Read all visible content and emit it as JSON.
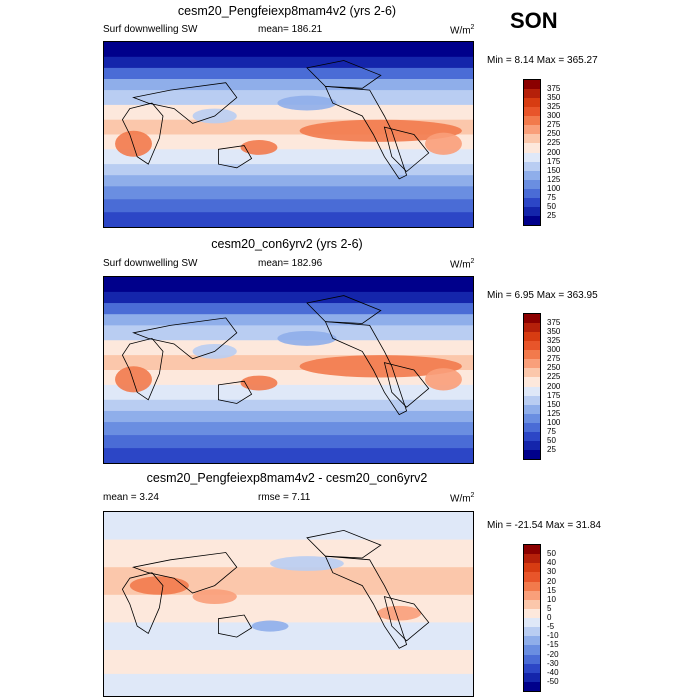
{
  "figure": {
    "season": "SON"
  },
  "chart_data": [
    {
      "type": "heatmap",
      "title": "cesm20_Pengfeiexp8mam4v2 (yrs 2-6)",
      "left_label": "Surf downwelling SW",
      "stat_text": "mean= 186.21",
      "units_text": "W/m",
      "units_sup": "2",
      "minmax_text": "Min = 8.14 Max = 365.27",
      "min": 8.14,
      "max": 365.27,
      "mean": 186.21,
      "colorbar_labels": [
        "375",
        "350",
        "325",
        "300",
        "275",
        "250",
        "225",
        "200",
        "175",
        "150",
        "125",
        "100",
        "75",
        "50",
        "25"
      ],
      "colorbar_colors": [
        "#8b0000",
        "#b5200a",
        "#d73c12",
        "#e8552a",
        "#f27a4c",
        "#f99f7a",
        "#fbc7ab",
        "#fde8dc",
        "#dfe8f8",
        "#b9cdf2",
        "#8faeea",
        "#6a8ee1",
        "#4a6cd6",
        "#2c46c6",
        "#1425ab",
        "#00008b"
      ],
      "colormap": "diverging",
      "field": "absolute"
    },
    {
      "type": "heatmap",
      "title": "cesm20_con6yrv2 (yrs 2-6)",
      "left_label": "Surf downwelling SW",
      "stat_text": "mean= 182.96",
      "units_text": "W/m",
      "units_sup": "2",
      "minmax_text": "Min = 6.95 Max = 363.95",
      "min": 6.95,
      "max": 363.95,
      "mean": 182.96,
      "colorbar_labels": [
        "375",
        "350",
        "325",
        "300",
        "275",
        "250",
        "225",
        "200",
        "175",
        "150",
        "125",
        "100",
        "75",
        "50",
        "25"
      ],
      "colorbar_colors": [
        "#8b0000",
        "#b5200a",
        "#d73c12",
        "#e8552a",
        "#f27a4c",
        "#f99f7a",
        "#fbc7ab",
        "#fde8dc",
        "#dfe8f8",
        "#b9cdf2",
        "#8faeea",
        "#6a8ee1",
        "#4a6cd6",
        "#2c46c6",
        "#1425ab",
        "#00008b"
      ],
      "colormap": "diverging",
      "field": "absolute"
    },
    {
      "type": "heatmap",
      "title": "cesm20_Pengfeiexp8mam4v2 - cesm20_con6yrv2",
      "left_label": "mean = 3.24",
      "stat_text": "rmse = 7.11",
      "units_text": "W/m",
      "units_sup": "2",
      "minmax_text": "Min = -21.54 Max = 31.84",
      "min": -21.54,
      "max": 31.84,
      "mean": 3.24,
      "rmse": 7.11,
      "colorbar_labels": [
        "50",
        "40",
        "30",
        "20",
        "15",
        "10",
        "5",
        "0",
        "-5",
        "-10",
        "-15",
        "-20",
        "-30",
        "-40",
        "-50"
      ],
      "colorbar_colors": [
        "#8b0000",
        "#b5200a",
        "#d73c12",
        "#e8552a",
        "#f27a4c",
        "#f99f7a",
        "#fbc7ab",
        "#fde8dc",
        "#dfe8f8",
        "#b9cdf2",
        "#8faeea",
        "#6a8ee1",
        "#4a6cd6",
        "#2c46c6",
        "#1425ab",
        "#00008b"
      ],
      "colormap": "diverging",
      "field": "difference"
    }
  ]
}
